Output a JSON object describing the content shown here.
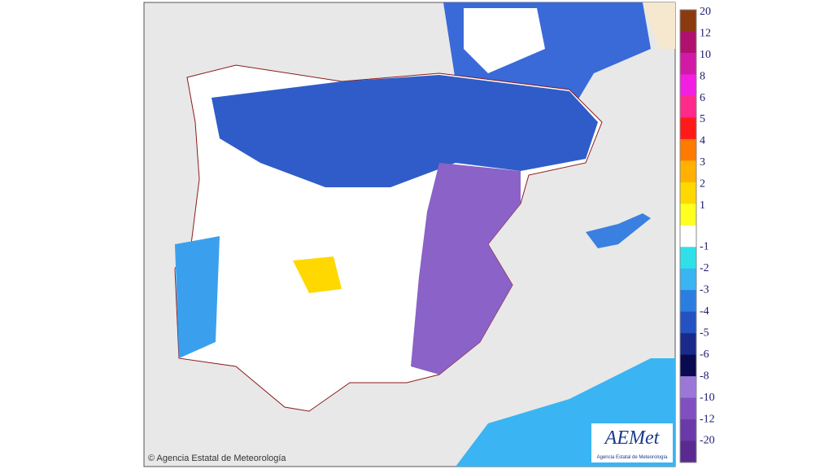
{
  "map": {
    "copyright": "© Agencia Estatal de Meteorología",
    "logo": {
      "title": "AEMet",
      "subtitle": "Agencia Estatal de Meteorología"
    }
  },
  "scale": {
    "labels": [
      "20",
      "12",
      "10",
      "8",
      "6",
      "5",
      "4",
      "3",
      "2",
      "1",
      "-1",
      "-2",
      "-3",
      "-4",
      "-5",
      "-6",
      "-8",
      "-10",
      "-12",
      "-20"
    ],
    "colors": [
      "#8b3a0f",
      "#b0106e",
      "#d21aa6",
      "#f21ee0",
      "#ff2a8a",
      "#ff1a1a",
      "#ff7a00",
      "#ffb000",
      "#ffd800",
      "#ffff20",
      "#ffffff",
      "#30e0e8",
      "#3ab4f2",
      "#2a7ee0",
      "#2452c0",
      "#1a2a8a",
      "#0a0a50",
      "#9a78d8",
      "#8050c0",
      "#6a3aa8",
      "#5a2a90"
    ]
  }
}
